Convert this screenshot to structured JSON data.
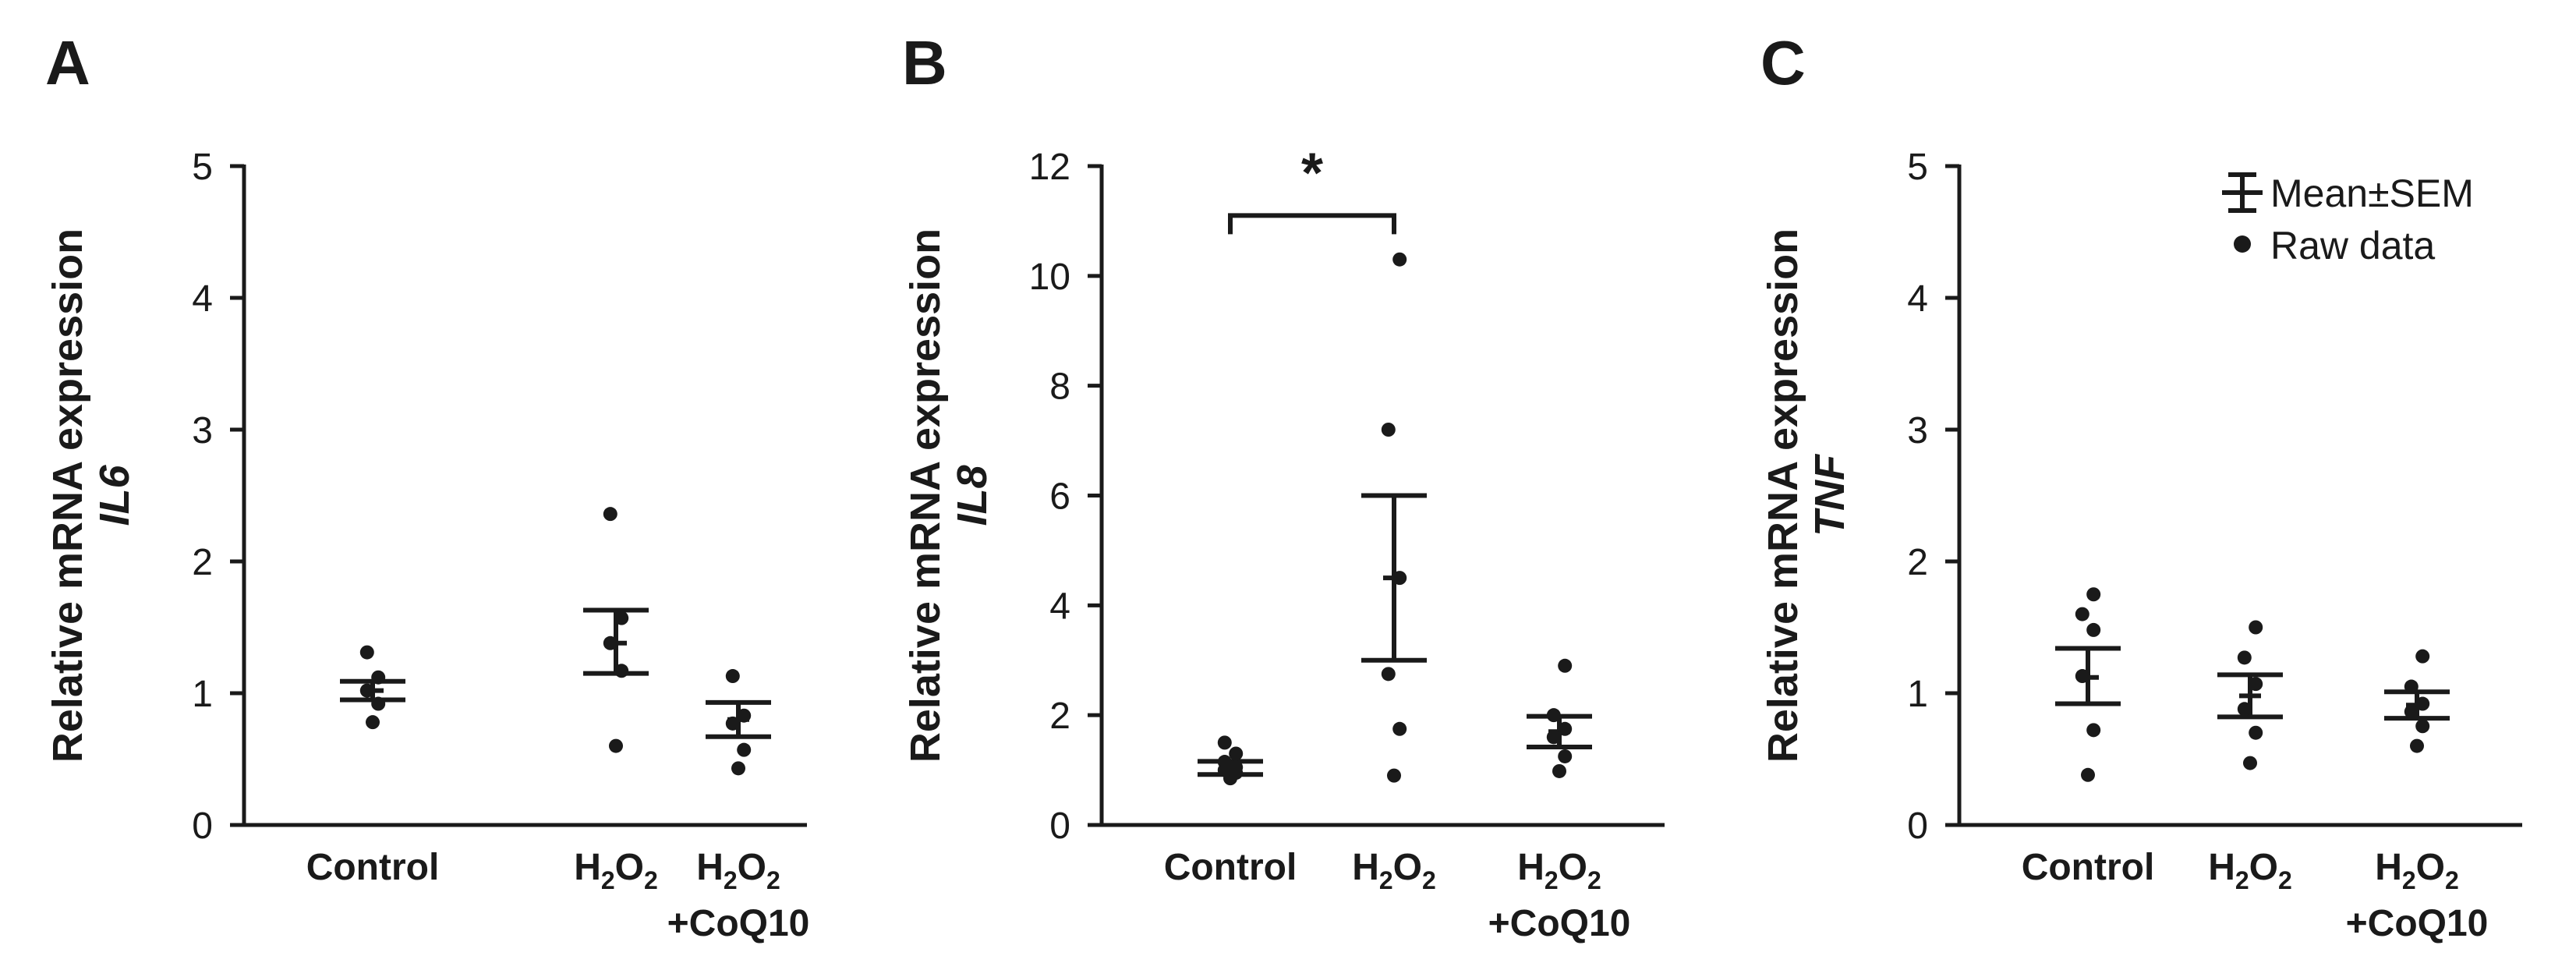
{
  "legend": {
    "items": [
      {
        "kind": "errorbar",
        "label": "Mean±SEM"
      },
      {
        "kind": "dot",
        "label": "Raw data"
      }
    ],
    "placement": "top-right of panel C"
  },
  "chart_data": [
    {
      "panel": "A",
      "type": "scatter",
      "ylabel": "Relative mRNA expression",
      "ylabel_gene": "IL6",
      "ylim": [
        0,
        5
      ],
      "yticks": [
        0,
        1,
        2,
        3,
        4,
        5
      ],
      "categories": [
        {
          "main": "Control",
          "sub": "",
          "tail": "",
          "line2": ""
        },
        {
          "main": "H",
          "sub": "2",
          "tail": "O",
          "sub2": "2",
          "line2": ""
        },
        {
          "main": "H",
          "sub": "2",
          "tail": "O",
          "sub2": "2",
          "line2": "+CoQ10"
        }
      ],
      "groups": [
        {
          "mean": 1.02,
          "sem_low": 0.95,
          "sem_high": 1.09,
          "points": [
            0.78,
            0.92,
            1.02,
            1.12,
            1.31
          ]
        },
        {
          "mean": 1.38,
          "sem_low": 1.15,
          "sem_high": 1.63,
          "points": [
            0.6,
            1.17,
            1.38,
            1.57,
            2.36
          ]
        },
        {
          "mean": 0.8,
          "sem_low": 0.67,
          "sem_high": 0.93,
          "points": [
            0.43,
            0.57,
            0.77,
            0.83,
            1.13
          ]
        }
      ],
      "significance": []
    },
    {
      "panel": "B",
      "type": "scatter",
      "ylabel": "Relative mRNA expression",
      "ylabel_gene": "IL8",
      "ylim": [
        0,
        12
      ],
      "yticks": [
        0,
        2,
        4,
        6,
        8,
        10,
        12
      ],
      "categories": [
        {
          "main": "Control",
          "sub": "",
          "tail": "",
          "line2": ""
        },
        {
          "main": "H",
          "sub": "2",
          "tail": "O",
          "sub2": "2",
          "line2": ""
        },
        {
          "main": "H",
          "sub": "2",
          "tail": "O",
          "sub2": "2",
          "line2": "+CoQ10"
        }
      ],
      "groups": [
        {
          "mean": 1.05,
          "sem_low": 0.92,
          "sem_high": 1.16,
          "points": [
            0.85,
            0.95,
            1.0,
            1.05,
            1.15,
            1.3,
            1.5
          ]
        },
        {
          "mean": 4.5,
          "sem_low": 3.0,
          "sem_high": 6.0,
          "points": [
            0.9,
            1.75,
            2.75,
            4.5,
            7.2,
            10.3
          ]
        },
        {
          "mean": 1.7,
          "sem_low": 1.42,
          "sem_high": 1.98,
          "points": [
            0.98,
            1.25,
            1.6,
            1.75,
            2.0,
            2.9
          ]
        }
      ],
      "significance": [
        {
          "from": 0,
          "to": 1,
          "y": 11.1,
          "label": "*"
        }
      ]
    },
    {
      "panel": "C",
      "type": "scatter",
      "ylabel": "Relative mRNA expression",
      "ylabel_gene": "TNF",
      "ylim": [
        0,
        5
      ],
      "yticks": [
        0,
        1,
        2,
        3,
        4,
        5
      ],
      "categories": [
        {
          "main": "Control",
          "sub": "",
          "tail": "",
          "line2": ""
        },
        {
          "main": "H",
          "sub": "2",
          "tail": "O",
          "sub2": "2",
          "line2": ""
        },
        {
          "main": "H",
          "sub": "2",
          "tail": "O",
          "sub2": "2",
          "line2": "+CoQ10"
        }
      ],
      "groups": [
        {
          "mean": 1.12,
          "sem_low": 0.92,
          "sem_high": 1.34,
          "points": [
            0.38,
            0.72,
            1.13,
            1.48,
            1.6,
            1.75
          ]
        },
        {
          "mean": 0.98,
          "sem_low": 0.82,
          "sem_high": 1.14,
          "points": [
            0.47,
            0.7,
            0.88,
            1.07,
            1.27,
            1.5
          ]
        },
        {
          "mean": 0.91,
          "sem_low": 0.81,
          "sem_high": 1.01,
          "points": [
            0.6,
            0.75,
            0.86,
            0.92,
            1.05,
            1.28
          ]
        }
      ],
      "significance": []
    }
  ]
}
